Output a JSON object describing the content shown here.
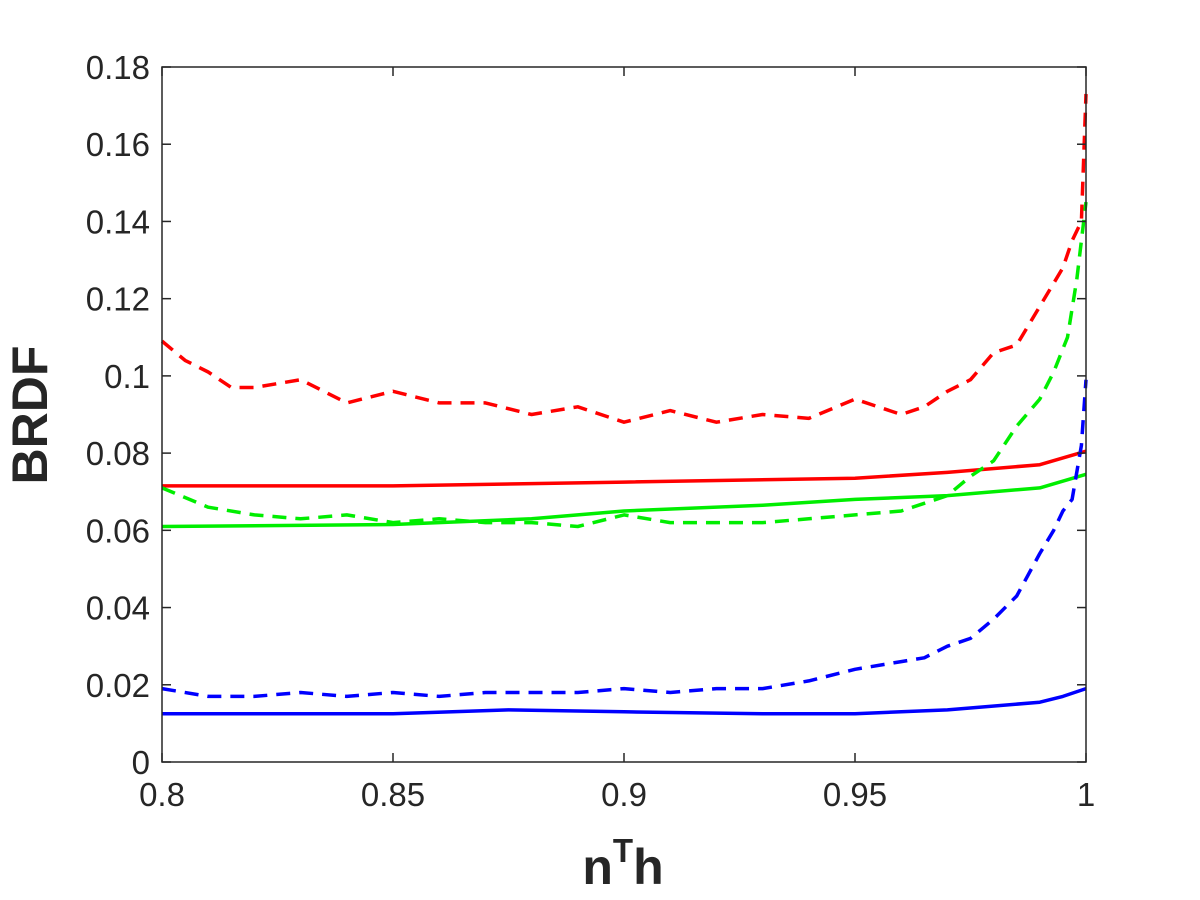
{
  "chart_data": {
    "type": "line",
    "xlabel": "n",
    "xlabel_sup": "T",
    "xlabel_tail": "h",
    "ylabel": "BRDF",
    "xlim": [
      0.8,
      1.0
    ],
    "ylim": [
      0,
      0.18
    ],
    "xticks": [
      {
        "value": 0.8,
        "label": "0.8"
      },
      {
        "value": 0.85,
        "label": "0.85"
      },
      {
        "value": 0.9,
        "label": "0.9"
      },
      {
        "value": 0.95,
        "label": "0.95"
      },
      {
        "value": 1.0,
        "label": "1"
      }
    ],
    "yticks": [
      {
        "value": 0,
        "label": "0"
      },
      {
        "value": 0.02,
        "label": "0.02"
      },
      {
        "value": 0.04,
        "label": "0.04"
      },
      {
        "value": 0.06,
        "label": "0.06"
      },
      {
        "value": 0.08,
        "label": "0.08"
      },
      {
        "value": 0.1,
        "label": "0.1"
      },
      {
        "value": 0.12,
        "label": "0.12"
      },
      {
        "value": 0.14,
        "label": "0.14"
      },
      {
        "value": 0.16,
        "label": "0.16"
      },
      {
        "value": 0.18,
        "label": "0.18"
      }
    ],
    "grid": false,
    "legend": "none",
    "series": [
      {
        "color": "#ff0000",
        "style": "solid",
        "x": [
          0.8,
          0.85,
          0.9,
          0.95,
          0.97,
          0.99,
          1.0
        ],
        "y": [
          0.0715,
          0.0715,
          0.0725,
          0.0735,
          0.075,
          0.077,
          0.0805
        ]
      },
      {
        "color": "#ff0000",
        "style": "dashed",
        "x": [
          0.8,
          0.805,
          0.81,
          0.815,
          0.82,
          0.83,
          0.84,
          0.85,
          0.86,
          0.87,
          0.88,
          0.89,
          0.9,
          0.91,
          0.92,
          0.93,
          0.94,
          0.95,
          0.96,
          0.965,
          0.97,
          0.975,
          0.98,
          0.985,
          0.99,
          0.993,
          0.995,
          0.997,
          0.999,
          1.0
        ],
        "y": [
          0.109,
          0.104,
          0.101,
          0.097,
          0.097,
          0.099,
          0.093,
          0.096,
          0.093,
          0.093,
          0.09,
          0.092,
          0.088,
          0.091,
          0.088,
          0.09,
          0.089,
          0.094,
          0.09,
          0.092,
          0.096,
          0.099,
          0.106,
          0.108,
          0.118,
          0.124,
          0.128,
          0.135,
          0.14,
          0.173
        ]
      },
      {
        "color": "#00ee00",
        "style": "solid",
        "x": [
          0.8,
          0.85,
          0.88,
          0.9,
          0.93,
          0.95,
          0.97,
          0.99,
          1.0
        ],
        "y": [
          0.061,
          0.0615,
          0.063,
          0.065,
          0.0665,
          0.068,
          0.069,
          0.071,
          0.0745
        ]
      },
      {
        "color": "#00ee00",
        "style": "dashed",
        "x": [
          0.8,
          0.81,
          0.82,
          0.83,
          0.84,
          0.85,
          0.86,
          0.87,
          0.88,
          0.89,
          0.9,
          0.91,
          0.92,
          0.93,
          0.94,
          0.95,
          0.96,
          0.965,
          0.97,
          0.975,
          0.98,
          0.985,
          0.99,
          0.993,
          0.996,
          0.998,
          1.0
        ],
        "y": [
          0.071,
          0.066,
          0.064,
          0.063,
          0.064,
          0.062,
          0.063,
          0.062,
          0.062,
          0.061,
          0.064,
          0.062,
          0.062,
          0.062,
          0.063,
          0.064,
          0.065,
          0.067,
          0.069,
          0.074,
          0.078,
          0.087,
          0.094,
          0.101,
          0.11,
          0.125,
          0.145
        ]
      },
      {
        "color": "#0000ff",
        "style": "solid",
        "x": [
          0.8,
          0.85,
          0.875,
          0.9,
          0.93,
          0.95,
          0.97,
          0.99,
          0.995,
          1.0
        ],
        "y": [
          0.0125,
          0.0125,
          0.0135,
          0.013,
          0.0125,
          0.0125,
          0.0135,
          0.0155,
          0.017,
          0.019
        ]
      },
      {
        "color": "#0000ff",
        "style": "dashed",
        "x": [
          0.8,
          0.81,
          0.82,
          0.83,
          0.84,
          0.85,
          0.86,
          0.87,
          0.88,
          0.89,
          0.9,
          0.91,
          0.92,
          0.93,
          0.94,
          0.95,
          0.96,
          0.965,
          0.97,
          0.975,
          0.98,
          0.985,
          0.99,
          0.993,
          0.995,
          0.997,
          0.999,
          1.0
        ],
        "y": [
          0.019,
          0.017,
          0.017,
          0.018,
          0.017,
          0.018,
          0.017,
          0.018,
          0.018,
          0.018,
          0.019,
          0.018,
          0.019,
          0.019,
          0.021,
          0.024,
          0.026,
          0.027,
          0.03,
          0.032,
          0.037,
          0.043,
          0.054,
          0.06,
          0.065,
          0.068,
          0.082,
          0.099
        ]
      }
    ]
  }
}
